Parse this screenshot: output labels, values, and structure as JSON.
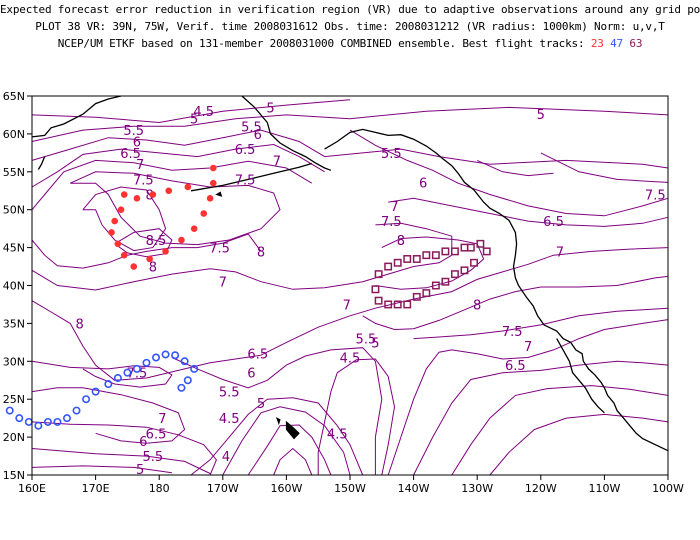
{
  "title": {
    "line1": "Expected forecast error reduction in verification region (VR) due to adaptive observations around any grid point.",
    "line2": "PLOT 38 VR: 39N, 75W, Verif. time 2008031612 Obs. time: 2008031212 (VR radius: 1000km) Norm: u,v,T",
    "line3": "NCEP/UM ETKF based on 131-member 2008031000 COMBINED ensemble.  Best flight tracks:",
    "track_numbers": [
      "23",
      "47",
      "63"
    ]
  },
  "colors": {
    "contour": "#800080",
    "track_23": "#ff3333",
    "track_47": "#3355ff",
    "track_63": "#8b1a5a",
    "coast": "#000000"
  },
  "axes": {
    "lon_labels": [
      "160E",
      "170E",
      "180",
      "170W",
      "160W",
      "150W",
      "140W",
      "130W",
      "120W",
      "110W",
      "100W"
    ],
    "lat_labels": [
      "15N",
      "20N",
      "25N",
      "30N",
      "35N",
      "40N",
      "45N",
      "50N",
      "55N",
      "60N",
      "65N"
    ]
  },
  "contour_labels": [
    {
      "text": "5",
      "lon": 185.5,
      "lat": 62
    },
    {
      "text": "4.5",
      "lon": 187,
      "lat": 63
    },
    {
      "text": "5",
      "lon": 197.5,
      "lat": 63.5
    },
    {
      "text": "5",
      "lon": 240,
      "lat": 62.6
    },
    {
      "text": "5.5",
      "lon": 176,
      "lat": 60.5
    },
    {
      "text": "5.5",
      "lon": 194.5,
      "lat": 61
    },
    {
      "text": "6",
      "lon": 176.5,
      "lat": 59
    },
    {
      "text": "6",
      "lon": 195.5,
      "lat": 60
    },
    {
      "text": "6.5",
      "lon": 175.5,
      "lat": 57.5
    },
    {
      "text": "6.5",
      "lon": 193.5,
      "lat": 58
    },
    {
      "text": "7",
      "lon": 177,
      "lat": 56
    },
    {
      "text": "7",
      "lon": 198.5,
      "lat": 56.5
    },
    {
      "text": "7.5",
      "lon": 177.5,
      "lat": 54
    },
    {
      "text": "7.5",
      "lon": 193.5,
      "lat": 54
    },
    {
      "text": "8",
      "lon": 178.5,
      "lat": 52
    },
    {
      "text": "8",
      "lon": 196,
      "lat": 44.5
    },
    {
      "text": "8.5",
      "lon": 179.5,
      "lat": 46
    },
    {
      "text": "8",
      "lon": 179,
      "lat": 42.5
    },
    {
      "text": "7.5",
      "lon": 189.5,
      "lat": 45
    },
    {
      "text": "7",
      "lon": 190,
      "lat": 40.5
    },
    {
      "text": "5.5",
      "lon": 216.5,
      "lat": 57.5
    },
    {
      "text": "6",
      "lon": 221.5,
      "lat": 53.6
    },
    {
      "text": "7",
      "lon": 217,
      "lat": 50.5
    },
    {
      "text": "7.5",
      "lon": 216.5,
      "lat": 48.5
    },
    {
      "text": "8",
      "lon": 218,
      "lat": 46
    },
    {
      "text": "6.5",
      "lon": 242,
      "lat": 48.5
    },
    {
      "text": "7.5",
      "lon": 258,
      "lat": 52
    },
    {
      "text": "7",
      "lon": 243,
      "lat": 44.5
    },
    {
      "text": "8",
      "lon": 230,
      "lat": 37.5
    },
    {
      "text": "7.5",
      "lon": 235.5,
      "lat": 34
    },
    {
      "text": "7",
      "lon": 238,
      "lat": 32
    },
    {
      "text": "6.5",
      "lon": 236,
      "lat": 29.5
    },
    {
      "text": "5.5",
      "lon": 212.5,
      "lat": 33
    },
    {
      "text": "5",
      "lon": 214,
      "lat": 32.5
    },
    {
      "text": "4.5",
      "lon": 210,
      "lat": 30.5
    },
    {
      "text": "4.5",
      "lon": 208,
      "lat": 20.5
    },
    {
      "text": "7",
      "lon": 209.5,
      "lat": 37.5
    },
    {
      "text": "8",
      "lon": 167.5,
      "lat": 35
    },
    {
      "text": "6.5",
      "lon": 195.5,
      "lat": 31
    },
    {
      "text": "6",
      "lon": 194.5,
      "lat": 28.5
    },
    {
      "text": "5.5",
      "lon": 191,
      "lat": 26
    },
    {
      "text": "5",
      "lon": 196,
      "lat": 24.5
    },
    {
      "text": "4.5",
      "lon": 191,
      "lat": 22.5
    },
    {
      "text": "4",
      "lon": 190.5,
      "lat": 17.5
    },
    {
      "text": "7.5",
      "lon": 176.5,
      "lat": 28.5
    },
    {
      "text": "7",
      "lon": 180.5,
      "lat": 22.5
    },
    {
      "text": "6.5",
      "lon": 179.5,
      "lat": 20.5
    },
    {
      "text": "6",
      "lon": 177.5,
      "lat": 19.5
    },
    {
      "text": "5.5",
      "lon": 179,
      "lat": 17.5
    },
    {
      "text": "5",
      "lon": 177,
      "lat": 15.8
    }
  ],
  "track_23": [
    [
      174.5,
      52
    ],
    [
      174,
      50
    ],
    [
      173,
      48.5
    ],
    [
      172.5,
      47
    ],
    [
      173.5,
      45.5
    ],
    [
      174.5,
      44
    ],
    [
      176,
      42.5
    ],
    [
      178.5,
      43.5
    ],
    [
      181,
      44.5
    ],
    [
      183.5,
      46
    ],
    [
      185.5,
      47.5
    ],
    [
      187,
      49.5
    ],
    [
      188,
      51.5
    ],
    [
      188.5,
      53.5
    ],
    [
      188.5,
      55.5
    ],
    [
      184.5,
      53
    ],
    [
      181.5,
      52.5
    ],
    [
      179,
      52
    ],
    [
      176.5,
      51.5
    ]
  ],
  "track_47": [
    [
      183.5,
      26.5
    ],
    [
      184.5,
      27.5
    ],
    [
      185.5,
      29
    ],
    [
      184,
      30
    ],
    [
      182.5,
      30.8
    ],
    [
      181,
      30.9
    ],
    [
      179.5,
      30.5
    ],
    [
      178,
      29.8
    ],
    [
      176.5,
      29
    ],
    [
      175,
      28.5
    ],
    [
      173.5,
      27.8
    ],
    [
      172,
      27
    ],
    [
      170,
      26
    ],
    [
      168.5,
      25
    ],
    [
      167,
      23.5
    ],
    [
      165.5,
      22.5
    ],
    [
      164,
      22
    ],
    [
      162.5,
      22
    ],
    [
      161,
      21.5
    ],
    [
      159.5,
      22
    ],
    [
      158,
      22.5
    ],
    [
      156.5,
      23.5
    ]
  ],
  "track_63": [
    [
      214.5,
      41.5
    ],
    [
      216,
      42.5
    ],
    [
      217.5,
      43
    ],
    [
      219,
      43.5
    ],
    [
      220.5,
      43.5
    ],
    [
      222,
      44
    ],
    [
      223.5,
      44
    ],
    [
      225,
      44.5
    ],
    [
      226.5,
      44.5
    ],
    [
      228,
      45
    ],
    [
      229,
      45
    ],
    [
      230.5,
      45.5
    ],
    [
      231.5,
      44.5
    ],
    [
      229.5,
      43
    ],
    [
      228,
      42
    ],
    [
      226.5,
      41.5
    ],
    [
      225,
      40.5
    ],
    [
      223.5,
      40
    ],
    [
      222,
      39
    ],
    [
      220.5,
      38.5
    ],
    [
      219,
      37.5
    ],
    [
      217.5,
      37.5
    ],
    [
      216,
      37.5
    ],
    [
      214.5,
      38
    ],
    [
      214,
      39.5
    ]
  ]
}
